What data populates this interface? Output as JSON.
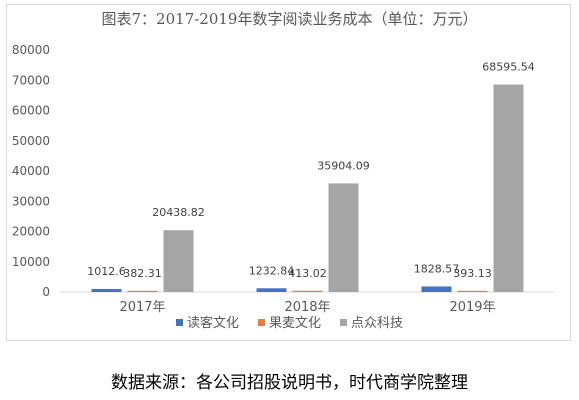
{
  "chart_data": {
    "type": "bar",
    "title": "图表7：2017-2019年数字阅读业务成本（单位：万元）",
    "categories": [
      "2017年",
      "2018年",
      "2019年"
    ],
    "series": [
      {
        "name": "读客文化",
        "color": "#4472c4",
        "values": [
          1012.6,
          1232.84,
          1828.57
        ],
        "labels": [
          "1012.6",
          "1232.84",
          "1828.57"
        ]
      },
      {
        "name": "果麦文化",
        "color": "#ed7d31",
        "values": [
          382.31,
          413.02,
          393.13
        ],
        "labels": [
          "382.31",
          "413.02",
          "393.13"
        ]
      },
      {
        "name": "点众科技",
        "color": "#a5a5a5",
        "values": [
          20438.82,
          35904.09,
          68595.54
        ],
        "labels": [
          "20438.82",
          "35904.09",
          "68595.54"
        ]
      }
    ],
    "ylim": [
      0,
      80000
    ],
    "yticks": [
      0,
      10000,
      20000,
      30000,
      40000,
      50000,
      60000,
      70000,
      80000
    ],
    "xlabel": "",
    "ylabel": "",
    "grid": false,
    "legend_position": "bottom"
  },
  "source": "数据来源：各公司招股说明书，时代商学院整理"
}
